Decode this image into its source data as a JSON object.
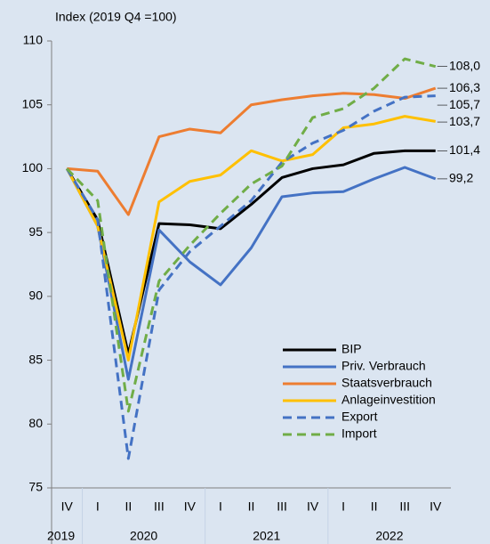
{
  "chart_data": {
    "type": "line",
    "title": "Index (2019 Q4 =100)",
    "categories": [
      "IV",
      "I",
      "II",
      "III",
      "IV",
      "I",
      "II",
      "III",
      "IV",
      "I",
      "II",
      "III",
      "IV"
    ],
    "x_groups": [
      {
        "label": "2019",
        "count": 1
      },
      {
        "label": "2020",
        "count": 4
      },
      {
        "label": "2021",
        "count": 4
      },
      {
        "label": "2022",
        "count": 4
      }
    ],
    "ylim": [
      75,
      110
    ],
    "yticks": [
      75,
      80,
      85,
      90,
      95,
      100,
      105,
      110
    ],
    "legend": "lower right",
    "series": [
      {
        "name": "BIP",
        "color": "#000000",
        "dash": false,
        "values": [
          100,
          96,
          85.5,
          95.7,
          95.6,
          95.3,
          97.2,
          99.3,
          100,
          100.3,
          101.2,
          101.4,
          101.4
        ],
        "value_labels": [
          null,
          null,
          null,
          null,
          null,
          null,
          null,
          null,
          null,
          null,
          null,
          null,
          "101,4"
        ]
      },
      {
        "name": "Priv. Verbrauch",
        "color": "#4472c4",
        "dash": false,
        "values": [
          100,
          95.5,
          83.5,
          95.2,
          92.7,
          90.9,
          93.8,
          97.8,
          98.1,
          98.2,
          99.2,
          100.1,
          99.2
        ],
        "value_labels": [
          null,
          null,
          null,
          null,
          null,
          null,
          null,
          null,
          null,
          null,
          null,
          null,
          "99,2"
        ]
      },
      {
        "name": "Staatsverbrauch",
        "color": "#ed7d31",
        "dash": false,
        "values": [
          100,
          99.8,
          96.4,
          102.5,
          103.1,
          102.8,
          105.0,
          105.4,
          105.7,
          105.9,
          105.8,
          105.5,
          106.3
        ],
        "value_labels": [
          null,
          null,
          null,
          null,
          null,
          null,
          null,
          null,
          null,
          null,
          null,
          null,
          "106,3"
        ]
      },
      {
        "name": "Anlageinvestition",
        "color": "#ffc000",
        "dash": false,
        "values": [
          100,
          95.5,
          85,
          97.4,
          99.0,
          99.5,
          101.4,
          100.6,
          101.1,
          103.2,
          103.5,
          104.1,
          103.7
        ],
        "value_labels": [
          null,
          null,
          null,
          null,
          null,
          null,
          null,
          null,
          null,
          null,
          null,
          null,
          "103,7"
        ]
      },
      {
        "name": "Export",
        "color": "#4472c4",
        "dash": true,
        "values": [
          100,
          96,
          77.3,
          90.5,
          93.5,
          95.5,
          97.5,
          100.5,
          102,
          103,
          104.5,
          105.6,
          105.7
        ],
        "value_labels": [
          null,
          null,
          null,
          null,
          null,
          null,
          null,
          null,
          null,
          null,
          null,
          null,
          "105,7"
        ]
      },
      {
        "name": "Import",
        "color": "#70ad47",
        "dash": true,
        "values": [
          100,
          97.5,
          81,
          91.2,
          94,
          96.5,
          98.8,
          100.2,
          104,
          104.7,
          106.3,
          108.6,
          108.0
        ],
        "value_labels": [
          null,
          null,
          null,
          null,
          null,
          null,
          null,
          null,
          null,
          null,
          null,
          null,
          "108,0"
        ]
      }
    ]
  }
}
